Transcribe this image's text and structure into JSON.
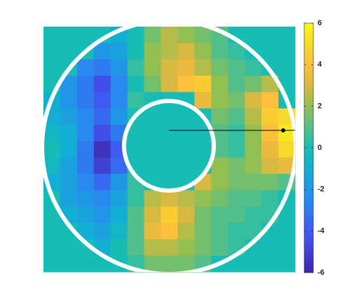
{
  "chart_data": {
    "type": "heatmap",
    "z": [
      [
        0,
        0,
        0,
        0,
        -1,
        0,
        1.5,
        2.5,
        2,
        1.5,
        1,
        0,
        0,
        0,
        0
      ],
      [
        0,
        0,
        0,
        -2,
        -1.5,
        0,
        2,
        2.5,
        3,
        2,
        1,
        0.5,
        0,
        0,
        0
      ],
      [
        0,
        0,
        -2.5,
        -3,
        -2,
        0.5,
        2,
        3,
        3.5,
        2.5,
        1.5,
        1,
        0.5,
        0,
        0
      ],
      [
        0,
        -2,
        -3,
        -4.5,
        -2.5,
        0,
        1.5,
        3,
        4,
        4.5,
        2,
        1,
        1.5,
        2.5,
        0
      ],
      [
        -1,
        -2,
        -3,
        -4,
        -2.5,
        0.5,
        0,
        0,
        0,
        3.5,
        2,
        1.5,
        3,
        4,
        0
      ],
      [
        -1,
        -1.5,
        -2.5,
        -3.5,
        -2,
        0,
        0,
        0,
        0,
        0,
        1.5,
        1,
        2.5,
        4.5,
        5
      ],
      [
        -0.5,
        -1,
        -2.5,
        -4.5,
        -3,
        0,
        0,
        0,
        0,
        0,
        1,
        0.5,
        2,
        4,
        5.5
      ],
      [
        0,
        -1,
        -3,
        -5.5,
        -4,
        0,
        0,
        0,
        0,
        0,
        1,
        0.5,
        2,
        3.5,
        5
      ],
      [
        -0.5,
        -1.5,
        -3,
        -5,
        -3.5,
        0,
        0,
        0,
        0,
        0,
        2,
        1.5,
        2,
        3,
        3.5
      ],
      [
        -1,
        -1.5,
        -2.5,
        -3.5,
        -2,
        0.5,
        0,
        0,
        0,
        3,
        2,
        1.5,
        1.5,
        1.5,
        1
      ],
      [
        0,
        -1.5,
        -2,
        -2.5,
        -1.5,
        0.5,
        2.5,
        3,
        2.5,
        2,
        1.5,
        1,
        1,
        0.5,
        0
      ],
      [
        0,
        -1,
        -1.5,
        -2,
        -1,
        1,
        3,
        4.5,
        3,
        1.5,
        1,
        1,
        0.5,
        0.5,
        0
      ],
      [
        0,
        0,
        -1,
        -1.5,
        -0.5,
        1,
        3.5,
        4,
        2.5,
        1.5,
        1,
        0.5,
        0.5,
        0,
        0
      ],
      [
        0,
        0,
        0,
        -1,
        0,
        1,
        2.5,
        2.5,
        2,
        1.5,
        1,
        0.5,
        0,
        0,
        0
      ],
      [
        0,
        0,
        0,
        0,
        0,
        0.5,
        1.5,
        1.5,
        1.5,
        1,
        0,
        0,
        0,
        0,
        0
      ]
    ],
    "clim": [
      -6,
      6
    ],
    "cticks": [
      -6,
      -4,
      -2,
      0,
      2,
      4,
      6
    ]
  }
}
